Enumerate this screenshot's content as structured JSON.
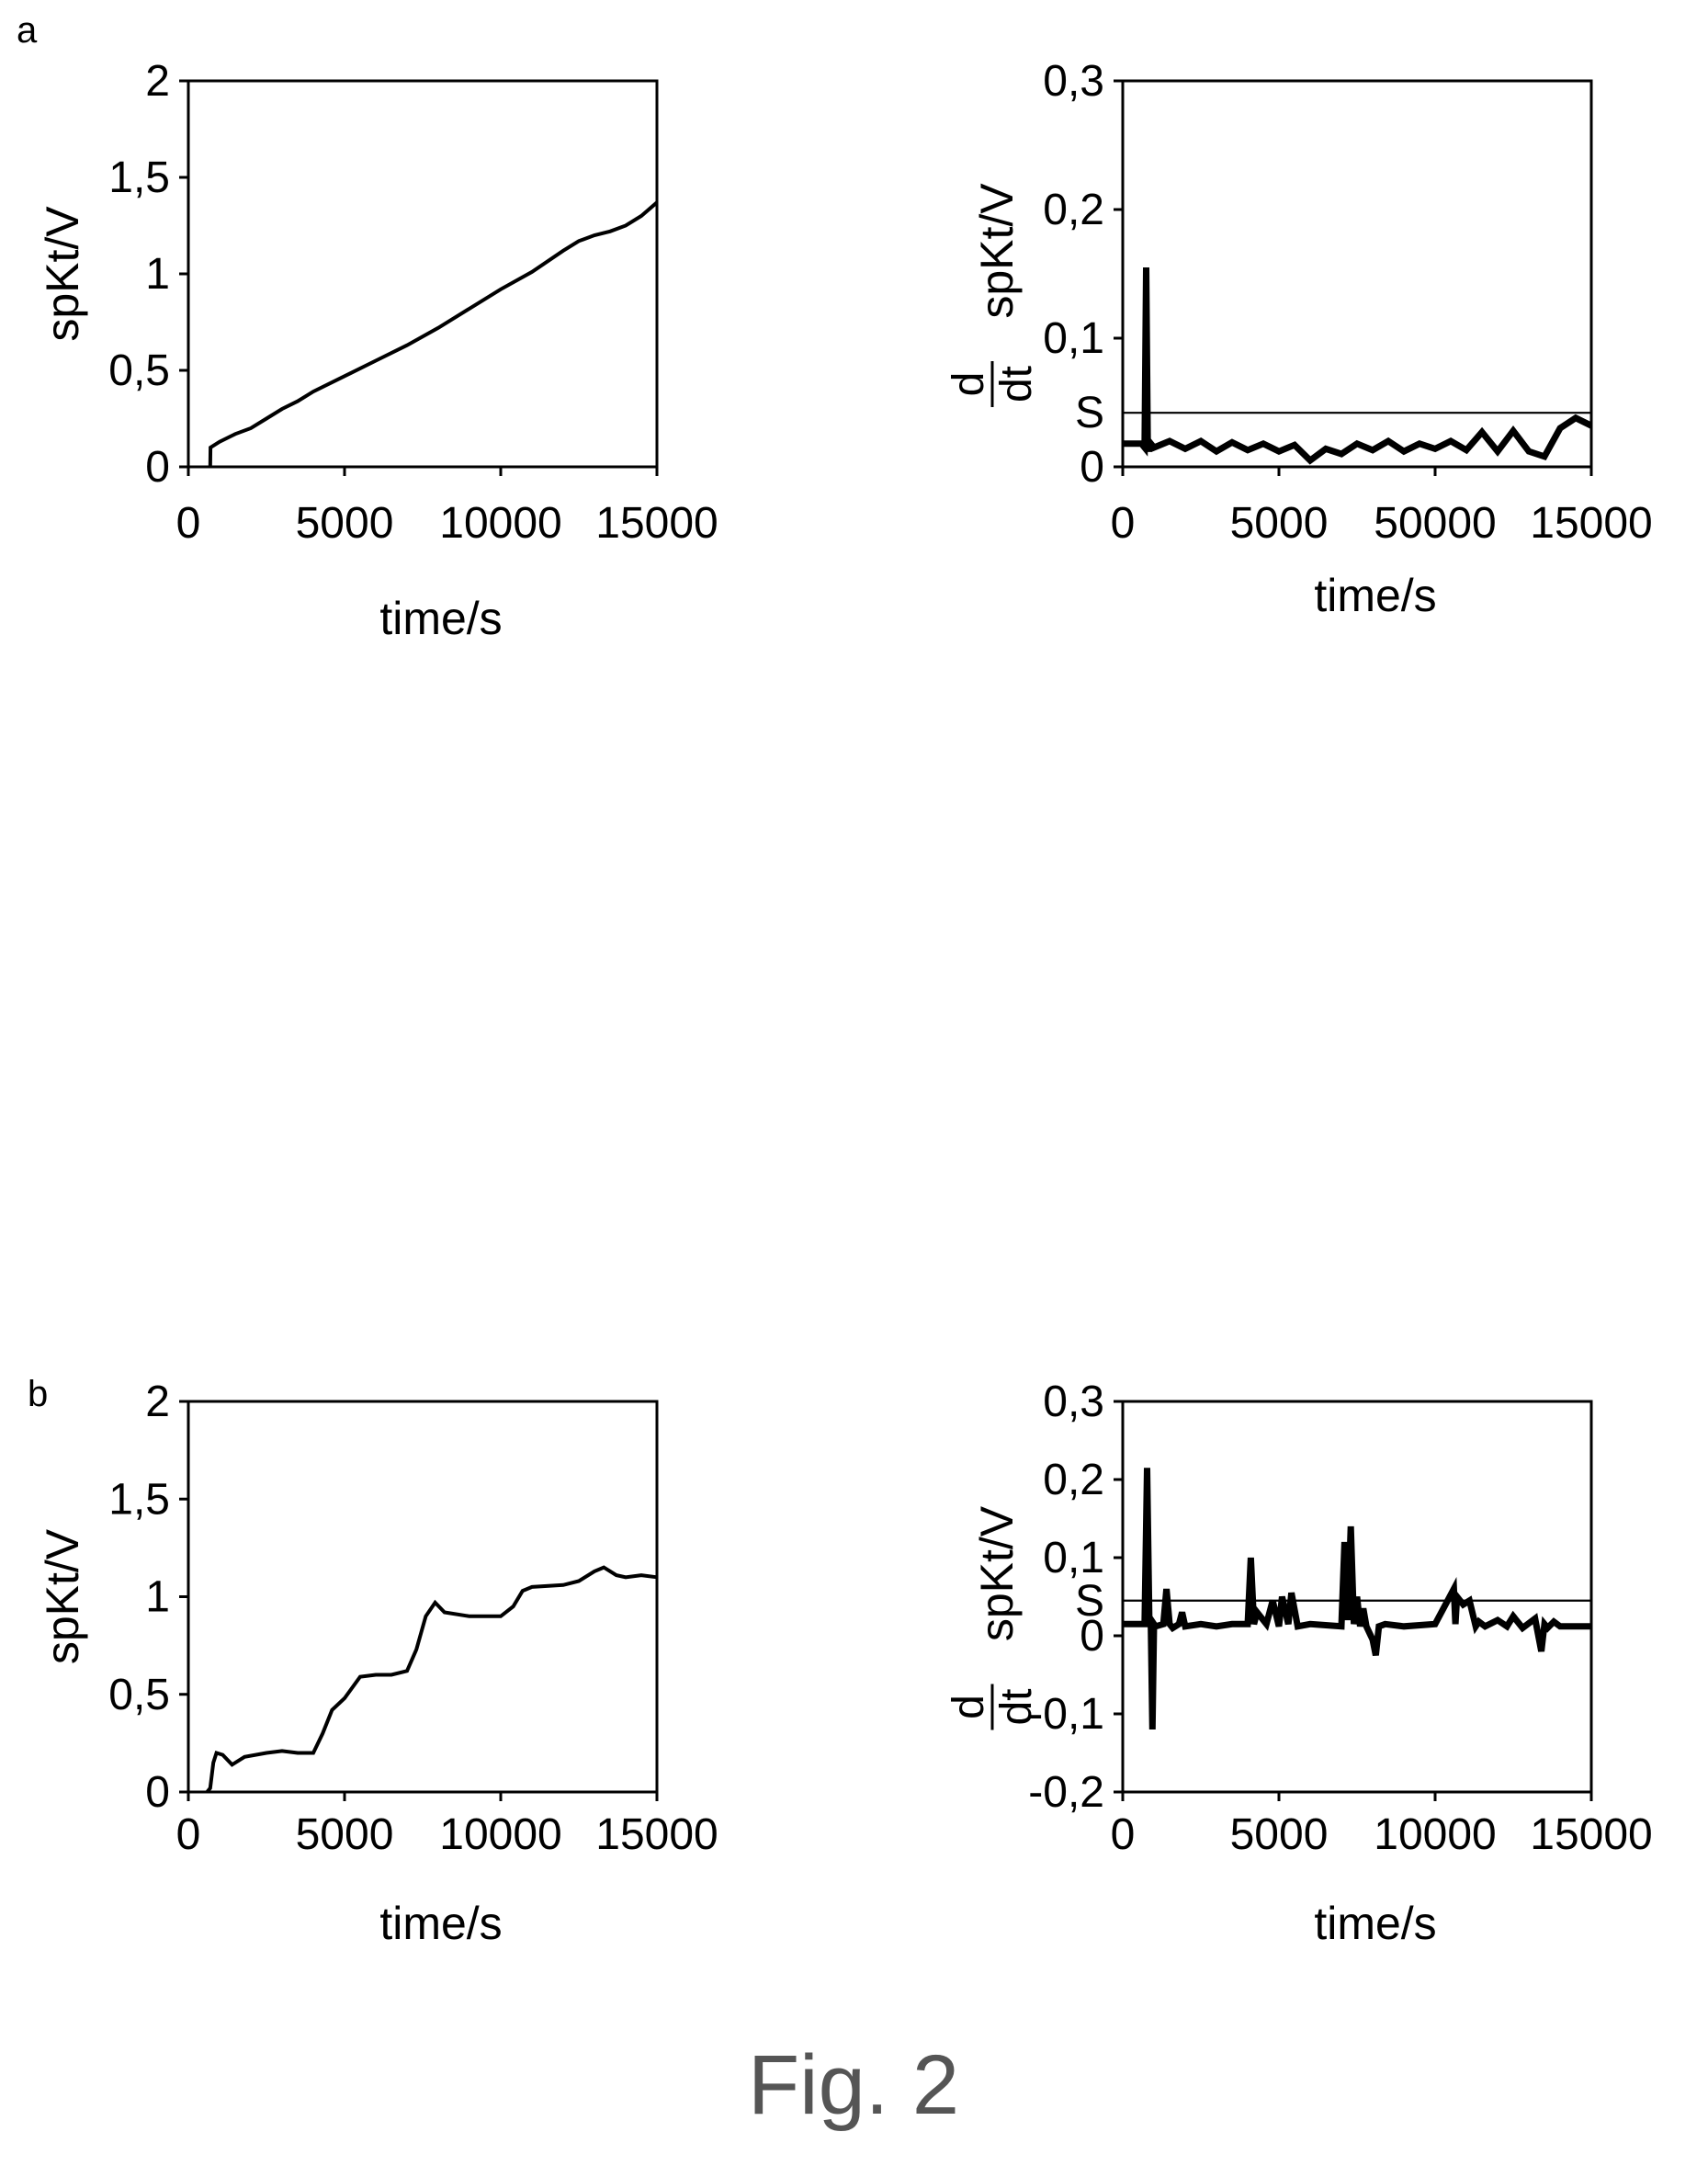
{
  "figure_caption": "Fig. 2",
  "panel_a_letter": "a",
  "panel_b_letter": "b",
  "chart_data": [
    {
      "id": "a-left",
      "type": "line",
      "xlabel": "time/s",
      "ylabel": "spKt/V",
      "xlim": [
        0,
        15000
      ],
      "ylim": [
        0,
        2
      ],
      "x_ticks": [
        "0",
        "5000",
        "10000",
        "15000"
      ],
      "y_ticks": [
        "0",
        "0,5",
        "1",
        "1,5",
        "2"
      ],
      "series": [
        {
          "x": [
            700,
            710,
            1000,
            1500,
            2000,
            2500,
            3000,
            3500,
            4000,
            5000,
            6000,
            7000,
            8000,
            9000,
            10000,
            11000,
            12000,
            12500,
            13000,
            13500,
            14000,
            14500,
            15000
          ],
          "y": [
            0.0,
            0.1,
            0.13,
            0.17,
            0.2,
            0.25,
            0.3,
            0.34,
            0.39,
            0.47,
            0.55,
            0.63,
            0.72,
            0.82,
            0.92,
            1.01,
            1.12,
            1.17,
            1.2,
            1.22,
            1.25,
            1.3,
            1.37
          ]
        }
      ]
    },
    {
      "id": "a-right",
      "type": "line",
      "xlabel": "time/s",
      "ylabel_fraction_num": "d",
      "ylabel_fraction_den": "dt",
      "ylabel": "spKt/V",
      "xlim": [
        0,
        15000
      ],
      "ylim": [
        0,
        0.3
      ],
      "x_ticks": [
        "0",
        "5000",
        "50000",
        "15000"
      ],
      "y_ticks": [
        "0",
        "0,1",
        "0,2",
        "0,3"
      ],
      "threshold": {
        "label": "S",
        "value": 0.042
      },
      "series": [
        {
          "x": [
            0,
            600,
            700,
            750,
            800,
            850,
            900,
            1000,
            1500,
            2000,
            2500,
            3000,
            3500,
            4000,
            4500,
            5000,
            5500,
            6000,
            6500,
            7000,
            7500,
            8000,
            8500,
            9000,
            9500,
            10000,
            10500,
            11000,
            11500,
            12000,
            12500,
            13000,
            13500,
            14000,
            14500,
            15000
          ],
          "y": [
            0.018,
            0.018,
            0.015,
            0.155,
            0.018,
            0.012,
            0.018,
            0.015,
            0.02,
            0.014,
            0.02,
            0.012,
            0.019,
            0.013,
            0.018,
            0.012,
            0.017,
            0.005,
            0.014,
            0.01,
            0.018,
            0.013,
            0.02,
            0.012,
            0.018,
            0.014,
            0.02,
            0.013,
            0.027,
            0.012,
            0.028,
            0.012,
            0.008,
            0.03,
            0.038,
            0.032
          ]
        }
      ]
    },
    {
      "id": "b-left",
      "type": "line",
      "xlabel": "time/s",
      "ylabel": "spKt/V",
      "xlim": [
        0,
        15000
      ],
      "ylim": [
        0,
        2
      ],
      "x_ticks": [
        "0",
        "5000",
        "10000",
        "15000"
      ],
      "y_ticks": [
        "0",
        "0,5",
        "1",
        "1,5",
        "2"
      ],
      "series": [
        {
          "x": [
            600,
            700,
            800,
            900,
            1100,
            1400,
            1800,
            2500,
            3000,
            3500,
            4000,
            4300,
            4600,
            5000,
            5500,
            6000,
            6500,
            7000,
            7300,
            7600,
            7900,
            8200,
            9000,
            10000,
            10400,
            10700,
            11000,
            12000,
            12500,
            13000,
            13300,
            13700,
            14000,
            14500,
            15000
          ],
          "y": [
            0.0,
            0.02,
            0.15,
            0.2,
            0.19,
            0.14,
            0.18,
            0.2,
            0.21,
            0.2,
            0.2,
            0.3,
            0.42,
            0.48,
            0.59,
            0.6,
            0.6,
            0.62,
            0.73,
            0.9,
            0.97,
            0.92,
            0.9,
            0.9,
            0.95,
            1.03,
            1.05,
            1.06,
            1.08,
            1.13,
            1.15,
            1.11,
            1.1,
            1.11,
            1.1
          ]
        }
      ]
    },
    {
      "id": "b-right",
      "type": "line",
      "xlabel": "time/s",
      "ylabel_fraction_num": "d",
      "ylabel_fraction_den": "dt",
      "ylabel": "spKt/V",
      "xlim": [
        0,
        15000
      ],
      "ylim": [
        -0.2,
        0.3
      ],
      "x_ticks": [
        "0",
        "5000",
        "10000",
        "15000"
      ],
      "y_ticks": [
        "-0,2",
        "-0,1",
        "0",
        "0,1",
        "S",
        "0,2",
        "0,3"
      ],
      "threshold": {
        "label": "S",
        "value": 0.045
      },
      "series": [
        {
          "x": [
            0,
            600,
            700,
            780,
            850,
            900,
            950,
            1000,
            1050,
            1300,
            1400,
            1500,
            1600,
            1800,
            1900,
            2000,
            2500,
            3000,
            3500,
            4000,
            4100,
            4200,
            4300,
            4600,
            4800,
            5000,
            5100,
            5300,
            5400,
            5600,
            6000,
            7000,
            7100,
            7200,
            7300,
            7400,
            7500,
            7600,
            7700,
            7800,
            8000,
            8100,
            8200,
            8400,
            9000,
            10000,
            10600,
            10650,
            10700,
            10900,
            11100,
            11300,
            11400,
            11600,
            12000,
            12300,
            12500,
            12800,
            13200,
            13400,
            13500,
            13600,
            13800,
            14000,
            15000
          ],
          "y": [
            0.015,
            0.015,
            0.015,
            0.215,
            0.02,
            0.015,
            -0.12,
            0.015,
            0.012,
            0.015,
            0.06,
            0.015,
            0.01,
            0.015,
            0.03,
            0.012,
            0.015,
            0.012,
            0.015,
            0.015,
            0.1,
            0.015,
            0.03,
            0.015,
            0.045,
            0.012,
            0.05,
            0.015,
            0.055,
            0.012,
            0.015,
            0.012,
            0.12,
            0.02,
            0.14,
            0.015,
            0.05,
            0.012,
            0.035,
            0.012,
            -0.005,
            -0.025,
            0.012,
            0.015,
            0.012,
            0.015,
            0.06,
            0.015,
            0.05,
            0.04,
            0.045,
            0.012,
            0.018,
            0.012,
            0.02,
            0.012,
            0.025,
            0.01,
            0.022,
            -0.02,
            0.015,
            0.01,
            0.018,
            0.012,
            0.012
          ]
        }
      ]
    }
  ]
}
